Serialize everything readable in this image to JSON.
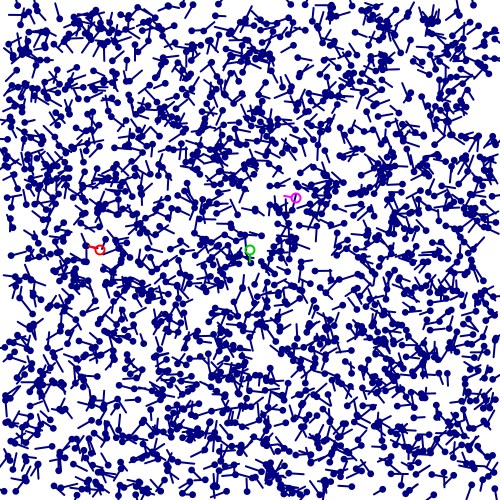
{
  "scene": {
    "background": "#ffffff",
    "glyph_color": "#000080",
    "glyph_count": 1800
  },
  "targets": [
    {
      "name": "target-red",
      "color": "#ff0000",
      "icon": "open-circle-with-tail"
    },
    {
      "name": "target-green",
      "color": "#00cc00",
      "icon": "open-circle-with-tail"
    },
    {
      "name": "target-magenta",
      "color": "#ff00ff",
      "icon": "open-circle-with-tail"
    }
  ]
}
